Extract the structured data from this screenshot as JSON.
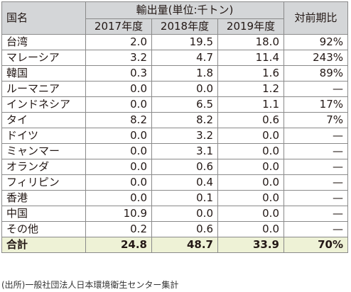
{
  "table": {
    "header": {
      "country": "国名",
      "group": "輸出量(単位:千トン)",
      "ratio": "対前期比",
      "years": [
        "2017年度",
        "2018年度",
        "2019年度"
      ]
    },
    "rows": [
      {
        "country": "台湾",
        "y2017": "2.0",
        "y2018": "19.5",
        "y2019": "18.0",
        "ratio": "92%"
      },
      {
        "country": "マレーシア",
        "y2017": "3.2",
        "y2018": "4.7",
        "y2019": "11.4",
        "ratio": "243%"
      },
      {
        "country": "韓国",
        "y2017": "0.3",
        "y2018": "1.8",
        "y2019": "1.6",
        "ratio": "89%"
      },
      {
        "country": "ルーマニア",
        "y2017": "0.0",
        "y2018": "0.0",
        "y2019": "1.2",
        "ratio": "—"
      },
      {
        "country": "インドネシア",
        "y2017": "0.0",
        "y2018": "6.5",
        "y2019": "1.1",
        "ratio": "17%"
      },
      {
        "country": "タイ",
        "y2017": "8.2",
        "y2018": "8.2",
        "y2019": "0.6",
        "ratio": "7%"
      },
      {
        "country": "ドイツ",
        "y2017": "0.0",
        "y2018": "3.2",
        "y2019": "0.0",
        "ratio": "—"
      },
      {
        "country": "ミャンマー",
        "y2017": "0.0",
        "y2018": "3.1",
        "y2019": "0.0",
        "ratio": "—"
      },
      {
        "country": "オランダ",
        "y2017": "0.0",
        "y2018": "0.6",
        "y2019": "0.0",
        "ratio": "—"
      },
      {
        "country": "フィリピン",
        "y2017": "0.0",
        "y2018": "0.4",
        "y2019": "0.0",
        "ratio": "—"
      },
      {
        "country": "香港",
        "y2017": "0.0",
        "y2018": "0.1",
        "y2019": "0.0",
        "ratio": "—"
      },
      {
        "country": "中国",
        "y2017": "10.9",
        "y2018": "0.0",
        "y2019": "0.0",
        "ratio": "—"
      },
      {
        "country": "その他",
        "y2017": "0.2",
        "y2018": "0.6",
        "y2019": "0.0",
        "ratio": "—"
      }
    ],
    "total": {
      "country": "合計",
      "y2017": "24.8",
      "y2018": "48.7",
      "y2019": "33.9",
      "ratio": "70%"
    }
  },
  "source": "(出所)一般社団法人日本環境衛生センター集計",
  "colors": {
    "header_bg": "#d4d6d8",
    "total_bg": "#eef2d6",
    "border": "#8a8a8a"
  }
}
